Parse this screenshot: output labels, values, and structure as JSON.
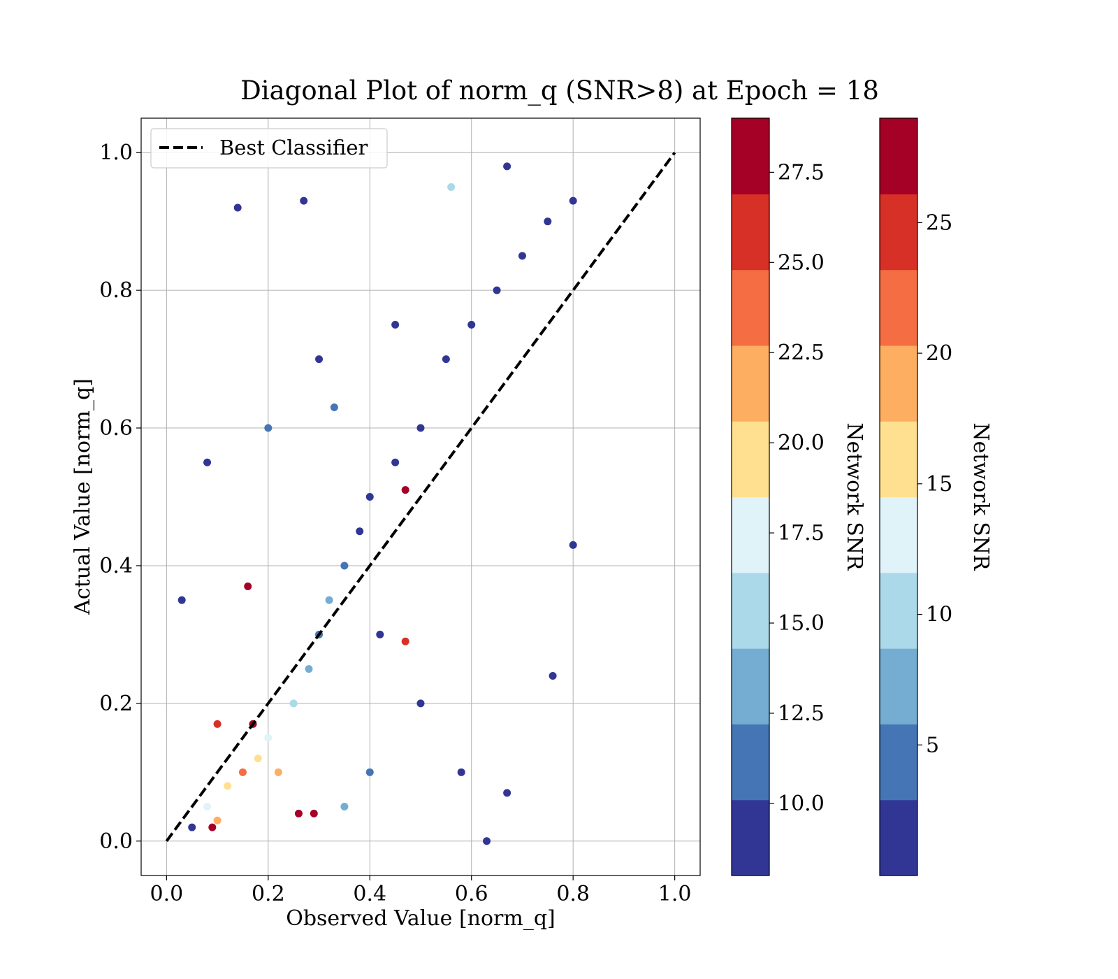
{
  "chart_data": {
    "type": "scatter",
    "title": "Diagonal Plot of norm_q (SNR>8) at Epoch = 18",
    "xlabel": "Observed Value [norm_q]",
    "ylabel": "Actual Value [norm_q]",
    "xlim": [
      -0.05,
      1.05
    ],
    "ylim": [
      -0.05,
      1.05
    ],
    "x_ticks": [
      "0.0",
      "0.2",
      "0.4",
      "0.6",
      "0.8",
      "1.0"
    ],
    "y_ticks": [
      "0.0",
      "0.2",
      "0.4",
      "0.6",
      "0.8",
      "1.0"
    ],
    "grid": true,
    "legend": {
      "position": "top-left",
      "entries": [
        "Best Classifier"
      ]
    },
    "reference_line": {
      "name": "Best Classifier",
      "x": [
        0,
        1
      ],
      "y": [
        0,
        1
      ],
      "style": "dashed",
      "color": "#000000"
    },
    "series": [
      {
        "points": [
          [
            0.05,
            0.02,
            10
          ],
          [
            0.08,
            0.05,
            18
          ],
          [
            0.1,
            0.03,
            22
          ],
          [
            0.12,
            0.08,
            20
          ],
          [
            0.15,
            0.1,
            24
          ],
          [
            0.18,
            0.12,
            19
          ],
          [
            0.2,
            0.15,
            17
          ],
          [
            0.22,
            0.1,
            21
          ],
          [
            0.25,
            0.2,
            15
          ],
          [
            0.28,
            0.25,
            13
          ],
          [
            0.3,
            0.3,
            12
          ],
          [
            0.32,
            0.35,
            14
          ],
          [
            0.35,
            0.4,
            11
          ],
          [
            0.38,
            0.45,
            10
          ],
          [
            0.4,
            0.5,
            9
          ],
          [
            0.45,
            0.55,
            9
          ],
          [
            0.5,
            0.6,
            10
          ],
          [
            0.55,
            0.7,
            9
          ],
          [
            0.6,
            0.75,
            9
          ],
          [
            0.65,
            0.8,
            9
          ],
          [
            0.7,
            0.85,
            9
          ],
          [
            0.75,
            0.9,
            9
          ],
          [
            0.8,
            0.93,
            9
          ],
          [
            0.67,
            0.98,
            9
          ],
          [
            0.14,
            0.92,
            9
          ],
          [
            0.27,
            0.93,
            9
          ],
          [
            0.56,
            0.95,
            15
          ],
          [
            0.8,
            0.43,
            9
          ],
          [
            0.76,
            0.24,
            9
          ],
          [
            0.67,
            0.07,
            9
          ],
          [
            0.63,
            0.0,
            9
          ],
          [
            0.47,
            0.51,
            27
          ],
          [
            0.47,
            0.29,
            26
          ],
          [
            0.16,
            0.37,
            27
          ],
          [
            0.17,
            0.17,
            28
          ],
          [
            0.09,
            0.02,
            28
          ],
          [
            0.26,
            0.04,
            27
          ],
          [
            0.29,
            0.04,
            28
          ],
          [
            0.1,
            0.17,
            25
          ],
          [
            0.33,
            0.63,
            12
          ],
          [
            0.42,
            0.3,
            9
          ],
          [
            0.5,
            0.2,
            10
          ],
          [
            0.58,
            0.1,
            9
          ],
          [
            0.03,
            0.35,
            9
          ],
          [
            0.08,
            0.55,
            9
          ],
          [
            0.2,
            0.6,
            11
          ],
          [
            0.3,
            0.7,
            10
          ],
          [
            0.45,
            0.75,
            9
          ],
          [
            0.35,
            0.05,
            13
          ],
          [
            0.4,
            0.1,
            11
          ]
        ]
      }
    ],
    "colorbars": [
      {
        "label": "Network SNR",
        "range": [
          8,
          29
        ],
        "ticks": [
          "10.0",
          "12.5",
          "15.0",
          "17.5",
          "20.0",
          "22.5",
          "25.0",
          "27.5"
        ],
        "tick_values": [
          10,
          12.5,
          15,
          17.5,
          20,
          22.5,
          25,
          27.5
        ]
      },
      {
        "label": "Network SNR",
        "range": [
          0,
          29
        ],
        "ticks": [
          "5",
          "10",
          "15",
          "20",
          "25"
        ],
        "tick_values": [
          5,
          10,
          15,
          20,
          25
        ]
      }
    ],
    "colormap": [
      "#313695",
      "#4575b4",
      "#74add1",
      "#abd9e9",
      "#e0f3f8",
      "#fee090",
      "#fdae61",
      "#f46d43",
      "#d73027",
      "#a50026"
    ]
  }
}
